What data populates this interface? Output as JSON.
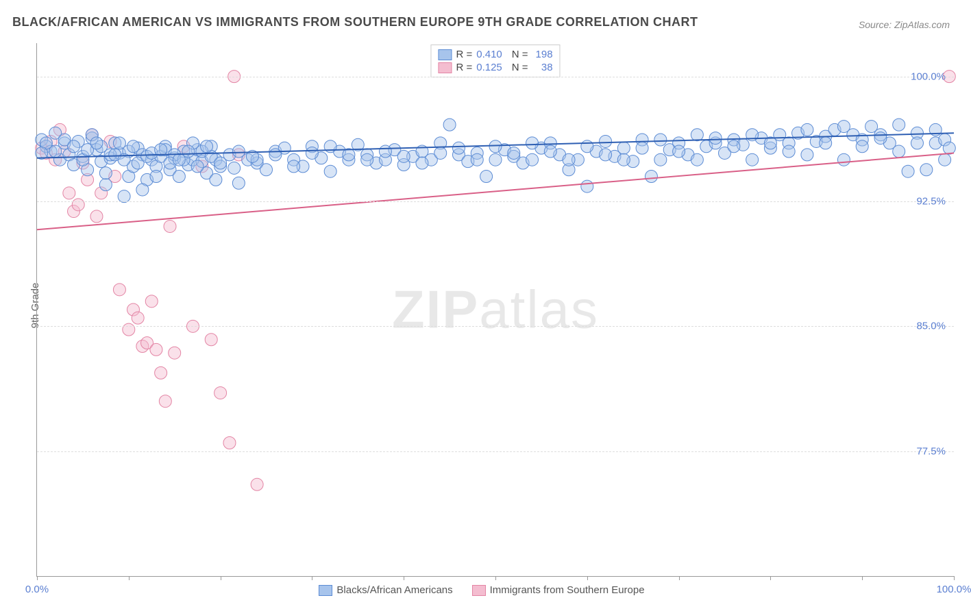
{
  "title": "BLACK/AFRICAN AMERICAN VS IMMIGRANTS FROM SOUTHERN EUROPE 9TH GRADE CORRELATION CHART",
  "source": "Source: ZipAtlas.com",
  "ylabel": "9th Grade",
  "watermark": {
    "bold": "ZIP",
    "light": "atlas"
  },
  "chart": {
    "type": "scatter",
    "background_color": "#ffffff",
    "grid_color": "#dddddd",
    "grid_dash": "4,4",
    "xlim": [
      0,
      100
    ],
    "ylim": [
      70,
      102
    ],
    "ytick_labels": [
      {
        "v": 100.0,
        "label": "100.0%"
      },
      {
        "v": 92.5,
        "label": "92.5%"
      },
      {
        "v": 85.0,
        "label": "85.0%"
      },
      {
        "v": 77.5,
        "label": "77.5%"
      }
    ],
    "xtick_positions": [
      0,
      10,
      20,
      30,
      40,
      50,
      60,
      70,
      80,
      90,
      100
    ],
    "xtick_labels": [
      {
        "v": 0,
        "label": "0.0%"
      },
      {
        "v": 100,
        "label": "100.0%"
      }
    ],
    "marker_radius": 9,
    "marker_opacity": 0.45,
    "line_width": 2,
    "series": [
      {
        "name": "Blacks/African Americans",
        "color_stroke": "#5b8bd4",
        "color_fill": "#a7c4ec",
        "R": "0.410",
        "N": "198",
        "trend": {
          "x1": 0,
          "y1": 95.1,
          "x2": 100,
          "y2": 96.6,
          "color": "#2e5fb3"
        },
        "points": [
          [
            0.5,
            96.2
          ],
          [
            1,
            95.8
          ],
          [
            1.5,
            95.5
          ],
          [
            2,
            96.6
          ],
          [
            2.5,
            95.0
          ],
          [
            3,
            96.0
          ],
          [
            3.5,
            95.3
          ],
          [
            4,
            94.7
          ],
          [
            4.5,
            96.1
          ],
          [
            5,
            95.2
          ],
          [
            5.5,
            94.4
          ],
          [
            6,
            96.3
          ],
          [
            6.5,
            95.6
          ],
          [
            7,
            94.9
          ],
          [
            7.5,
            93.5
          ],
          [
            8,
            95.1
          ],
          [
            8.5,
            96.0
          ],
          [
            9,
            95.4
          ],
          [
            9.5,
            92.8
          ],
          [
            10,
            94.0
          ],
          [
            10.5,
            94.6
          ],
          [
            11,
            95.7
          ],
          [
            11.5,
            95.3
          ],
          [
            12,
            93.8
          ],
          [
            12.5,
            95.0
          ],
          [
            13,
            94.6
          ],
          [
            13.5,
            95.2
          ],
          [
            14,
            95.8
          ],
          [
            14.5,
            94.4
          ],
          [
            15,
            95.1
          ],
          [
            15.5,
            94.0
          ],
          [
            16,
            95.5
          ],
          [
            16.5,
            94.7
          ],
          [
            17,
            95.0
          ],
          [
            17.5,
            95.6
          ],
          [
            18,
            94.9
          ],
          [
            18.5,
            94.2
          ],
          [
            19,
            95.8
          ],
          [
            19.5,
            95.0
          ],
          [
            20,
            94.6
          ],
          [
            21,
            95.3
          ],
          [
            22,
            93.6
          ],
          [
            23,
            95.0
          ],
          [
            24,
            94.8
          ],
          [
            25,
            94.4
          ],
          [
            26,
            95.5
          ],
          [
            27,
            95.7
          ],
          [
            28,
            95.0
          ],
          [
            29,
            94.6
          ],
          [
            30,
            95.8
          ],
          [
            31,
            95.1
          ],
          [
            32,
            94.3
          ],
          [
            33,
            95.5
          ],
          [
            34,
            95.0
          ],
          [
            35,
            95.9
          ],
          [
            36,
            95.3
          ],
          [
            37,
            94.8
          ],
          [
            38,
            95.0
          ],
          [
            39,
            95.6
          ],
          [
            40,
            94.7
          ],
          [
            41,
            95.2
          ],
          [
            42,
            95.5
          ],
          [
            43,
            95.0
          ],
          [
            44,
            96.0
          ],
          [
            45,
            97.1
          ],
          [
            46,
            95.3
          ],
          [
            47,
            94.9
          ],
          [
            48,
            95.4
          ],
          [
            49,
            94.0
          ],
          [
            50,
            95.0
          ],
          [
            51,
            95.6
          ],
          [
            52,
            95.2
          ],
          [
            53,
            94.8
          ],
          [
            54,
            95.0
          ],
          [
            55,
            95.7
          ],
          [
            56,
            96.0
          ],
          [
            57,
            95.3
          ],
          [
            58,
            94.4
          ],
          [
            59,
            95.0
          ],
          [
            60,
            93.4
          ],
          [
            61,
            95.5
          ],
          [
            62,
            96.1
          ],
          [
            63,
            95.2
          ],
          [
            64,
            95.7
          ],
          [
            65,
            94.9
          ],
          [
            66,
            96.2
          ],
          [
            67,
            94.0
          ],
          [
            68,
            95.0
          ],
          [
            69,
            95.6
          ],
          [
            70,
            96.0
          ],
          [
            71,
            95.3
          ],
          [
            72,
            96.5
          ],
          [
            73,
            95.8
          ],
          [
            74,
            96.0
          ],
          [
            75,
            95.4
          ],
          [
            76,
            96.2
          ],
          [
            77,
            95.9
          ],
          [
            78,
            95.0
          ],
          [
            79,
            96.3
          ],
          [
            80,
            95.7
          ],
          [
            81,
            96.5
          ],
          [
            82,
            96.0
          ],
          [
            83,
            96.6
          ],
          [
            84,
            95.3
          ],
          [
            85,
            96.1
          ],
          [
            86,
            96.4
          ],
          [
            87,
            96.8
          ],
          [
            88,
            95.0
          ],
          [
            89,
            96.5
          ],
          [
            90,
            96.2
          ],
          [
            91,
            97.0
          ],
          [
            92,
            96.5
          ],
          [
            93,
            96.0
          ],
          [
            94,
            97.1
          ],
          [
            95,
            94.3
          ],
          [
            96,
            96.6
          ],
          [
            97,
            94.4
          ],
          [
            98,
            96.0
          ],
          [
            99,
            96.2
          ],
          [
            99.5,
            95.7
          ],
          [
            5,
            95.0
          ],
          [
            6,
            96.5
          ],
          [
            7,
            95.8
          ],
          [
            8,
            95.3
          ],
          [
            9,
            96.0
          ],
          [
            10,
            95.5
          ],
          [
            11,
            94.8
          ],
          [
            12,
            95.2
          ],
          [
            13,
            94.0
          ],
          [
            14,
            95.6
          ],
          [
            15,
            95.3
          ],
          [
            16,
            95.0
          ],
          [
            17,
            96.0
          ],
          [
            18,
            95.5
          ],
          [
            19,
            95.2
          ],
          [
            20,
            94.8
          ],
          [
            22,
            95.5
          ],
          [
            24,
            95.0
          ],
          [
            26,
            95.3
          ],
          [
            28,
            94.6
          ],
          [
            30,
            95.4
          ],
          [
            32,
            95.8
          ],
          [
            34,
            95.3
          ],
          [
            36,
            95.0
          ],
          [
            38,
            95.5
          ],
          [
            40,
            95.2
          ],
          [
            42,
            94.8
          ],
          [
            44,
            95.4
          ],
          [
            46,
            95.7
          ],
          [
            48,
            95.0
          ],
          [
            50,
            95.8
          ],
          [
            52,
            95.4
          ],
          [
            54,
            96.0
          ],
          [
            56,
            95.5
          ],
          [
            58,
            95.0
          ],
          [
            60,
            95.8
          ],
          [
            62,
            95.3
          ],
          [
            64,
            95.0
          ],
          [
            66,
            95.7
          ],
          [
            68,
            96.2
          ],
          [
            70,
            95.5
          ],
          [
            72,
            95.0
          ],
          [
            74,
            96.3
          ],
          [
            76,
            95.8
          ],
          [
            78,
            96.5
          ],
          [
            80,
            96.0
          ],
          [
            82,
            95.5
          ],
          [
            84,
            96.8
          ],
          [
            86,
            96.0
          ],
          [
            88,
            97.0
          ],
          [
            90,
            95.8
          ],
          [
            92,
            96.3
          ],
          [
            94,
            95.5
          ],
          [
            96,
            96.0
          ],
          [
            98,
            96.8
          ],
          [
            99,
            95.0
          ],
          [
            3,
            96.2
          ],
          [
            4,
            95.8
          ],
          [
            2,
            95.5
          ],
          [
            1,
            96.0
          ],
          [
            0.5,
            95.4
          ],
          [
            5.5,
            95.6
          ],
          [
            6.5,
            96.0
          ],
          [
            7.5,
            94.2
          ],
          [
            8.5,
            95.3
          ],
          [
            9.5,
            95.0
          ],
          [
            10.5,
            95.8
          ],
          [
            11.5,
            93.2
          ],
          [
            12.5,
            95.4
          ],
          [
            13.5,
            95.6
          ],
          [
            14.5,
            94.8
          ],
          [
            15.5,
            95.0
          ],
          [
            16.5,
            95.5
          ],
          [
            17.5,
            94.6
          ],
          [
            18.5,
            95.8
          ],
          [
            19.5,
            93.8
          ],
          [
            21.5,
            94.5
          ],
          [
            23.5,
            95.2
          ]
        ]
      },
      {
        "name": "Immigrants from Southern Europe",
        "color_stroke": "#e384a4",
        "color_fill": "#f4bdd0",
        "R": "0.125",
        "N": "38",
        "trend": {
          "x1": 0,
          "y1": 90.8,
          "x2": 100,
          "y2": 95.4,
          "color": "#d95f87"
        },
        "points": [
          [
            0.5,
            95.7
          ],
          [
            1,
            95.4
          ],
          [
            1.5,
            96.1
          ],
          [
            2,
            95.0
          ],
          [
            2.5,
            96.8
          ],
          [
            3,
            95.5
          ],
          [
            3.5,
            93.0
          ],
          [
            4,
            91.9
          ],
          [
            4.5,
            92.3
          ],
          [
            5,
            94.8
          ],
          [
            5.5,
            93.8
          ],
          [
            6,
            96.5
          ],
          [
            6.5,
            91.6
          ],
          [
            7,
            93.0
          ],
          [
            8,
            96.1
          ],
          [
            8.5,
            94.0
          ],
          [
            9,
            87.2
          ],
          [
            10,
            84.8
          ],
          [
            10.5,
            86.0
          ],
          [
            11,
            85.5
          ],
          [
            11.5,
            83.8
          ],
          [
            12,
            84.0
          ],
          [
            12.5,
            86.5
          ],
          [
            13,
            83.6
          ],
          [
            13.5,
            82.2
          ],
          [
            14,
            80.5
          ],
          [
            14.5,
            91.0
          ],
          [
            15,
            83.4
          ],
          [
            16,
            95.8
          ],
          [
            17,
            85.0
          ],
          [
            18,
            94.6
          ],
          [
            19,
            84.2
          ],
          [
            20,
            81.0
          ],
          [
            21,
            78.0
          ],
          [
            22,
            95.3
          ],
          [
            24,
            75.5
          ],
          [
            99.5,
            100.0
          ],
          [
            21.5,
            100.0
          ]
        ]
      }
    ]
  },
  "legend_bottom": [
    {
      "label": "Blacks/African Americans",
      "stroke": "#5b8bd4",
      "fill": "#a7c4ec"
    },
    {
      "label": "Immigrants from Southern Europe",
      "stroke": "#e384a4",
      "fill": "#f4bdd0"
    }
  ],
  "colors": {
    "tick_label": "#5b7fd1",
    "axis": "#999999",
    "title": "#4a4a4a"
  }
}
